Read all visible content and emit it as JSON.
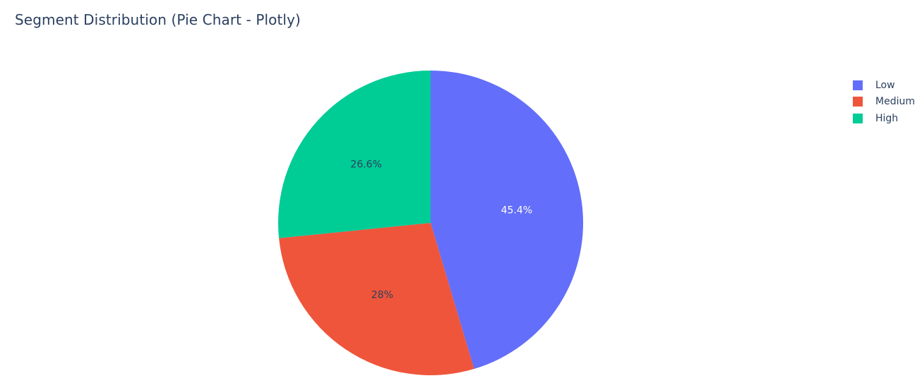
{
  "chart_data": {
    "type": "pie",
    "title": "Segment Distribution (Pie Chart - Plotly)",
    "categories": [
      "Low",
      "Medium",
      "High"
    ],
    "values": [
      45.4,
      28,
      26.6
    ],
    "labels": [
      "45.4%",
      "28%",
      "26.6%"
    ],
    "colors": [
      "#636efa",
      "#ef553b",
      "#00cc96"
    ],
    "label_colors": [
      "#ffffff",
      "#2a3f5f",
      "#2a3f5f"
    ],
    "direction": "clockwise",
    "start": "top",
    "legend": {
      "placement": "top-right",
      "entries": [
        "Low",
        "Medium",
        "High"
      ]
    }
  }
}
